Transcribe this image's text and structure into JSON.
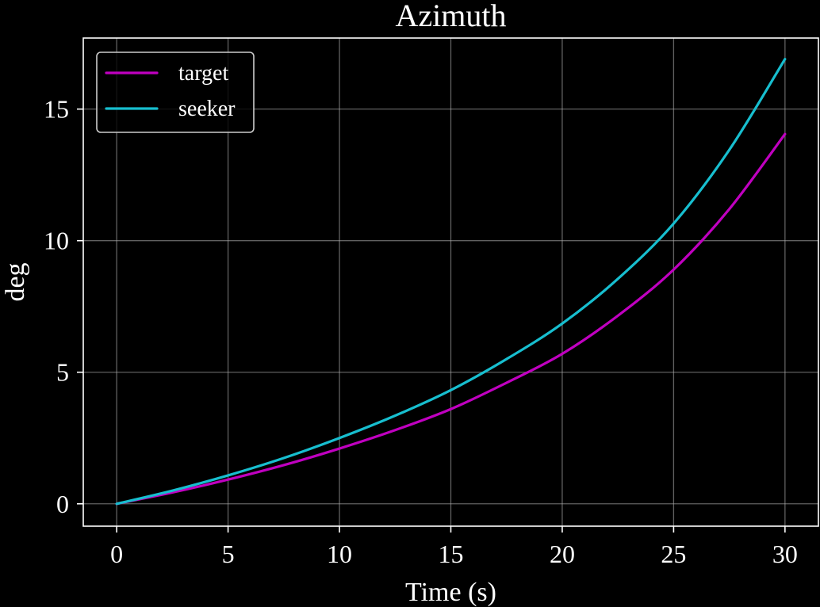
{
  "chart_data": {
    "type": "line",
    "title": "Azimuth",
    "xlabel": "Time (s)",
    "ylabel": "deg",
    "xlim": [
      -1.5,
      31.5
    ],
    "ylim": [
      -0.85,
      17.7
    ],
    "xticks": [
      0,
      5,
      10,
      15,
      20,
      25,
      30
    ],
    "yticks": [
      0,
      5,
      10,
      15
    ],
    "grid": true,
    "legend_position": "top-left",
    "x": [
      0,
      2.5,
      5,
      7.5,
      10,
      12.5,
      15,
      17.5,
      20,
      22.5,
      25,
      27.5,
      30
    ],
    "series": [
      {
        "name": "target",
        "color": "#c000c0",
        "values": [
          0,
          0.43,
          0.92,
          1.47,
          2.1,
          2.8,
          3.6,
          4.6,
          5.7,
          7.15,
          8.9,
          11.2,
          14.05
        ]
      },
      {
        "name": "seeker",
        "color": "#17becf",
        "values": [
          0,
          0.5,
          1.08,
          1.74,
          2.5,
          3.35,
          4.32,
          5.5,
          6.85,
          8.55,
          10.65,
          13.45,
          16.9
        ]
      }
    ]
  }
}
